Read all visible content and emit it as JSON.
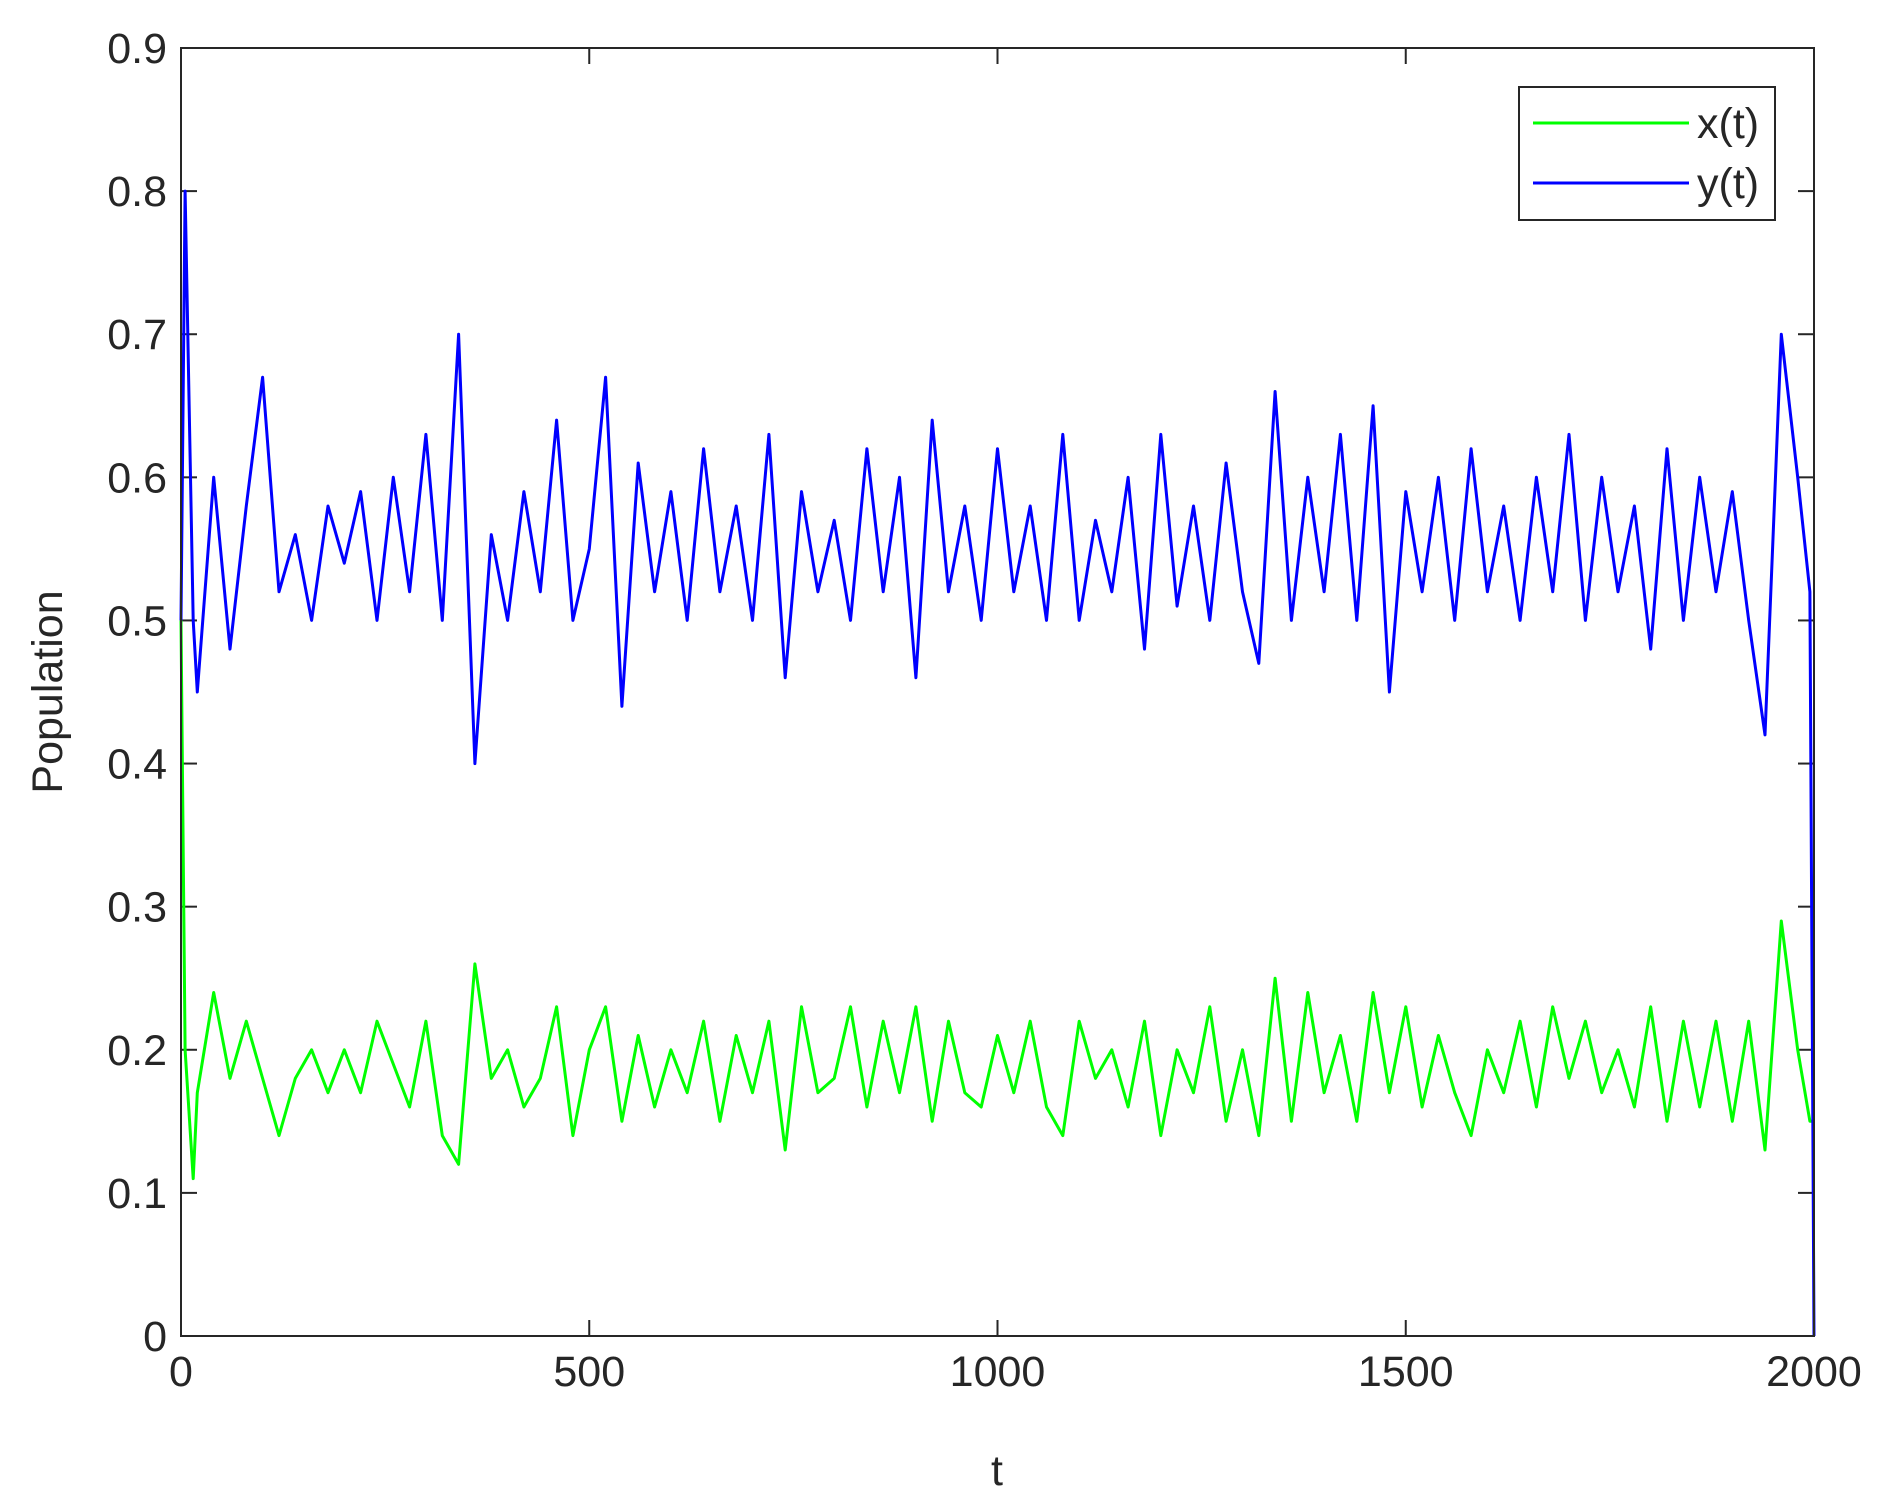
{
  "chart_data": {
    "type": "line",
    "x_label": "t",
    "y_label": "Population",
    "x": [
      0,
      5,
      15,
      20,
      40,
      60,
      80,
      100,
      120,
      140,
      160,
      180,
      200,
      220,
      240,
      260,
      280,
      300,
      320,
      340,
      360,
      380,
      400,
      420,
      440,
      460,
      480,
      500,
      520,
      540,
      560,
      580,
      600,
      620,
      640,
      660,
      680,
      700,
      720,
      740,
      760,
      780,
      800,
      820,
      840,
      860,
      880,
      900,
      920,
      940,
      960,
      980,
      1000,
      1020,
      1040,
      1060,
      1080,
      1100,
      1120,
      1140,
      1160,
      1180,
      1200,
      1220,
      1240,
      1260,
      1280,
      1300,
      1320,
      1340,
      1360,
      1380,
      1400,
      1420,
      1440,
      1460,
      1480,
      1500,
      1520,
      1540,
      1560,
      1580,
      1600,
      1620,
      1640,
      1660,
      1680,
      1700,
      1720,
      1740,
      1760,
      1780,
      1800,
      1820,
      1840,
      1860,
      1880,
      1900,
      1920,
      1940,
      1960,
      1980,
      1995,
      2000
    ],
    "series": [
      {
        "name": "x(t)",
        "color": "#00ff00",
        "values": [
          0.5,
          0.2,
          0.11,
          0.17,
          0.24,
          0.18,
          0.22,
          0.18,
          0.14,
          0.18,
          0.2,
          0.17,
          0.2,
          0.17,
          0.22,
          0.19,
          0.16,
          0.22,
          0.14,
          0.12,
          0.26,
          0.18,
          0.2,
          0.16,
          0.18,
          0.23,
          0.14,
          0.2,
          0.23,
          0.15,
          0.21,
          0.16,
          0.2,
          0.17,
          0.22,
          0.15,
          0.21,
          0.17,
          0.22,
          0.13,
          0.23,
          0.17,
          0.18,
          0.23,
          0.16,
          0.22,
          0.17,
          0.23,
          0.15,
          0.22,
          0.17,
          0.16,
          0.21,
          0.17,
          0.22,
          0.16,
          0.14,
          0.22,
          0.18,
          0.2,
          0.16,
          0.22,
          0.14,
          0.2,
          0.17,
          0.23,
          0.15,
          0.2,
          0.14,
          0.25,
          0.15,
          0.24,
          0.17,
          0.21,
          0.15,
          0.24,
          0.17,
          0.23,
          0.16,
          0.21,
          0.17,
          0.14,
          0.2,
          0.17,
          0.22,
          0.16,
          0.23,
          0.18,
          0.22,
          0.17,
          0.2,
          0.16,
          0.23,
          0.15,
          0.22,
          0.16,
          0.22,
          0.15,
          0.22,
          0.13,
          0.29,
          0.2,
          0.15,
          0.15
        ]
      },
      {
        "name": "y(t)",
        "color": "#0000ff",
        "values": [
          0.5,
          0.8,
          0.5,
          0.45,
          0.6,
          0.48,
          0.58,
          0.67,
          0.52,
          0.56,
          0.5,
          0.58,
          0.54,
          0.59,
          0.5,
          0.6,
          0.52,
          0.63,
          0.5,
          0.7,
          0.4,
          0.56,
          0.5,
          0.59,
          0.52,
          0.64,
          0.5,
          0.55,
          0.67,
          0.44,
          0.61,
          0.52,
          0.59,
          0.5,
          0.62,
          0.52,
          0.58,
          0.5,
          0.63,
          0.46,
          0.59,
          0.52,
          0.57,
          0.5,
          0.62,
          0.52,
          0.6,
          0.46,
          0.64,
          0.52,
          0.58,
          0.5,
          0.62,
          0.52,
          0.58,
          0.5,
          0.63,
          0.5,
          0.57,
          0.52,
          0.6,
          0.48,
          0.63,
          0.51,
          0.58,
          0.5,
          0.61,
          0.52,
          0.47,
          0.66,
          0.5,
          0.6,
          0.52,
          0.63,
          0.5,
          0.65,
          0.45,
          0.59,
          0.52,
          0.6,
          0.5,
          0.62,
          0.52,
          0.58,
          0.5,
          0.6,
          0.52,
          0.63,
          0.5,
          0.6,
          0.52,
          0.58,
          0.48,
          0.62,
          0.5,
          0.6,
          0.52,
          0.59,
          0.5,
          0.42,
          0.7,
          0.6,
          0.52,
          0
        ]
      }
    ],
    "xlim": [
      0,
      2000
    ],
    "xticks": [
      0,
      500,
      1000,
      1500,
      2000
    ],
    "ylim": [
      0,
      0.9
    ],
    "yticks": [
      0,
      0.1,
      0.2,
      0.3,
      0.4,
      0.5,
      0.6,
      0.7,
      0.8,
      0.9
    ],
    "legend": "top-right",
    "grid": false
  }
}
